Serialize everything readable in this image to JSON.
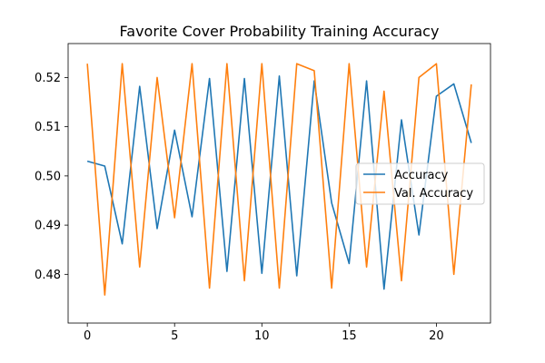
{
  "chart_data": {
    "type": "line",
    "title": "Favorite Cover Probability Training Accuracy",
    "xlabel": "",
    "ylabel": "",
    "xlim": [
      -1.1,
      23.1
    ],
    "ylim": [
      0.4701,
      0.5269
    ],
    "xticks": [
      0,
      5,
      10,
      15,
      20
    ],
    "xtick_labels": [
      "0",
      "5",
      "10",
      "15",
      "20"
    ],
    "yticks": [
      0.48,
      0.49,
      0.5,
      0.51,
      0.52
    ],
    "ytick_labels": [
      "0.48",
      "0.49",
      "0.50",
      "0.51",
      "0.52"
    ],
    "grid": false,
    "legend_position": "center right",
    "x": [
      0,
      1,
      2,
      3,
      4,
      5,
      6,
      7,
      8,
      9,
      10,
      11,
      12,
      13,
      14,
      15,
      16,
      17,
      18,
      19,
      20,
      21,
      22
    ],
    "series": [
      {
        "name": "Accuracy",
        "color": "#1f77b4",
        "values": [
          0.503,
          0.502,
          0.4862,
          0.5182,
          0.4893,
          0.5093,
          0.4917,
          0.5198,
          0.4806,
          0.5198,
          0.4802,
          0.5203,
          0.4797,
          0.5193,
          0.4945,
          0.4822,
          0.5193,
          0.477,
          0.5114,
          0.488,
          0.5162,
          0.5187,
          0.5067
        ]
      },
      {
        "name": "Val. Accuracy",
        "color": "#ff7f0e",
        "values": [
          0.5228,
          0.4758,
          0.5228,
          0.4815,
          0.52,
          0.4915,
          0.5228,
          0.4772,
          0.5228,
          0.4787,
          0.5228,
          0.4772,
          0.5228,
          0.5214,
          0.4772,
          0.5228,
          0.4815,
          0.5172,
          0.4787,
          0.52,
          0.5228,
          0.48,
          0.5186
        ]
      }
    ]
  }
}
